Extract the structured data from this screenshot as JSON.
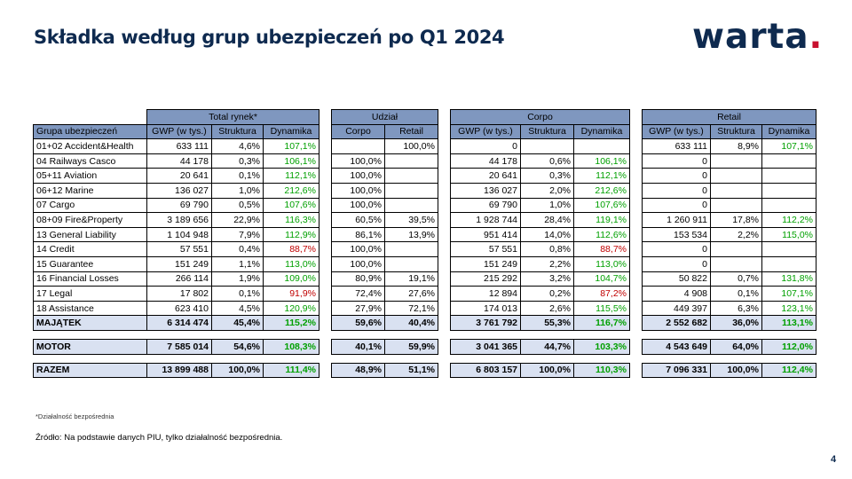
{
  "title": "Składka według grup ubezpieczeń po Q1 2024",
  "logo": {
    "text": "warta",
    "dot": "."
  },
  "page_number": "4",
  "headers": {
    "group": "Grupa ubezpieczeń",
    "total": "Total rynek*",
    "share": "Udział",
    "corpo": "Corpo",
    "retail": "Retail",
    "gwp": "GWP (w tys.)",
    "structure": "Struktura",
    "dynamics": "Dynamika",
    "share_corpo": "Corpo",
    "share_retail": "Retail"
  },
  "rows": [
    {
      "name": "01+02 Accident&Health",
      "t_gwp": "633 111",
      "t_str": "4,6%",
      "t_dyn": "107,1%",
      "u_corpo": "",
      "u_retail": "100,0%",
      "c_gwp": "0",
      "c_str": "",
      "c_dyn": "",
      "r_gwp": "633 111",
      "r_str": "8,9%",
      "r_dyn": "107,1%"
    },
    {
      "name": "04 Railways Casco",
      "t_gwp": "44 178",
      "t_str": "0,3%",
      "t_dyn": "106,1%",
      "u_corpo": "100,0%",
      "u_retail": "",
      "c_gwp": "44 178",
      "c_str": "0,6%",
      "c_dyn": "106,1%",
      "r_gwp": "0",
      "r_str": "",
      "r_dyn": ""
    },
    {
      "name": "05+11 Aviation",
      "t_gwp": "20 641",
      "t_str": "0,1%",
      "t_dyn": "112,1%",
      "u_corpo": "100,0%",
      "u_retail": "",
      "c_gwp": "20 641",
      "c_str": "0,3%",
      "c_dyn": "112,1%",
      "r_gwp": "0",
      "r_str": "",
      "r_dyn": ""
    },
    {
      "name": "06+12 Marine",
      "t_gwp": "136 027",
      "t_str": "1,0%",
      "t_dyn": "212,6%",
      "u_corpo": "100,0%",
      "u_retail": "",
      "c_gwp": "136 027",
      "c_str": "2,0%",
      "c_dyn": "212,6%",
      "r_gwp": "0",
      "r_str": "",
      "r_dyn": ""
    },
    {
      "name": "07 Cargo",
      "t_gwp": "69 790",
      "t_str": "0,5%",
      "t_dyn": "107,6%",
      "u_corpo": "100,0%",
      "u_retail": "",
      "c_gwp": "69 790",
      "c_str": "1,0%",
      "c_dyn": "107,6%",
      "r_gwp": "0",
      "r_str": "",
      "r_dyn": ""
    },
    {
      "name": "08+09 Fire&Property",
      "t_gwp": "3 189 656",
      "t_str": "22,9%",
      "t_dyn": "116,3%",
      "u_corpo": "60,5%",
      "u_retail": "39,5%",
      "c_gwp": "1 928 744",
      "c_str": "28,4%",
      "c_dyn": "119,1%",
      "r_gwp": "1 260 911",
      "r_str": "17,8%",
      "r_dyn": "112,2%"
    },
    {
      "name": "13 General Liability",
      "t_gwp": "1 104 948",
      "t_str": "7,9%",
      "t_dyn": "112,9%",
      "u_corpo": "86,1%",
      "u_retail": "13,9%",
      "c_gwp": "951 414",
      "c_str": "14,0%",
      "c_dyn": "112,6%",
      "r_gwp": "153 534",
      "r_str": "2,2%",
      "r_dyn": "115,0%"
    },
    {
      "name": "14 Credit",
      "t_gwp": "57 551",
      "t_str": "0,4%",
      "t_dyn": "88,7%",
      "u_corpo": "100,0%",
      "u_retail": "",
      "c_gwp": "57 551",
      "c_str": "0,8%",
      "c_dyn": "88,7%",
      "r_gwp": "0",
      "r_str": "",
      "r_dyn": ""
    },
    {
      "name": "15 Guarantee",
      "t_gwp": "151 249",
      "t_str": "1,1%",
      "t_dyn": "113,0%",
      "u_corpo": "100,0%",
      "u_retail": "",
      "c_gwp": "151 249",
      "c_str": "2,2%",
      "c_dyn": "113,0%",
      "r_gwp": "0",
      "r_str": "",
      "r_dyn": ""
    },
    {
      "name": "16 Financial Losses",
      "t_gwp": "266 114",
      "t_str": "1,9%",
      "t_dyn": "109,0%",
      "u_corpo": "80,9%",
      "u_retail": "19,1%",
      "c_gwp": "215 292",
      "c_str": "3,2%",
      "c_dyn": "104,7%",
      "r_gwp": "50 822",
      "r_str": "0,7%",
      "r_dyn": "131,8%"
    },
    {
      "name": "17 Legal",
      "t_gwp": "17 802",
      "t_str": "0,1%",
      "t_dyn": "91,9%",
      "u_corpo": "72,4%",
      "u_retail": "27,6%",
      "c_gwp": "12 894",
      "c_str": "0,2%",
      "c_dyn": "87,2%",
      "r_gwp": "4 908",
      "r_str": "0,1%",
      "r_dyn": "107,1%"
    },
    {
      "name": "18 Assistance",
      "t_gwp": "623 410",
      "t_str": "4,5%",
      "t_dyn": "120,9%",
      "u_corpo": "27,9%",
      "u_retail": "72,1%",
      "c_gwp": "174 013",
      "c_str": "2,6%",
      "c_dyn": "115,5%",
      "r_gwp": "449 397",
      "r_str": "6,3%",
      "r_dyn": "123,1%"
    }
  ],
  "majatek": {
    "name": "MAJĄTEK",
    "t_gwp": "6 314 474",
    "t_str": "45,4%",
    "t_dyn": "115,2%",
    "u_corpo": "59,6%",
    "u_retail": "40,4%",
    "c_gwp": "3 761 792",
    "c_str": "55,3%",
    "c_dyn": "116,7%",
    "r_gwp": "2 552 682",
    "r_str": "36,0%",
    "r_dyn": "113,1%"
  },
  "motor": {
    "name": "MOTOR",
    "t_gwp": "7 585 014",
    "t_str": "54,6%",
    "t_dyn": "108,3%",
    "u_corpo": "40,1%",
    "u_retail": "59,9%",
    "c_gwp": "3 041 365",
    "c_str": "44,7%",
    "c_dyn": "103,3%",
    "r_gwp": "4 543 649",
    "r_str": "64,0%",
    "r_dyn": "112,0%"
  },
  "razem": {
    "name": "RAZEM",
    "t_gwp": "13 899 488",
    "t_str": "100,0%",
    "t_dyn": "111,4%",
    "u_corpo": "48,9%",
    "u_retail": "51,1%",
    "c_gwp": "6 803 157",
    "c_str": "100,0%",
    "c_dyn": "110,3%",
    "r_gwp": "7 096 331",
    "r_str": "100,0%",
    "r_dyn": "112,4%"
  },
  "footnote": "*Działalność bezpośrednia",
  "source": "Źródło: Na podstawie danych PIU, tylko działalność bezpośrednia."
}
